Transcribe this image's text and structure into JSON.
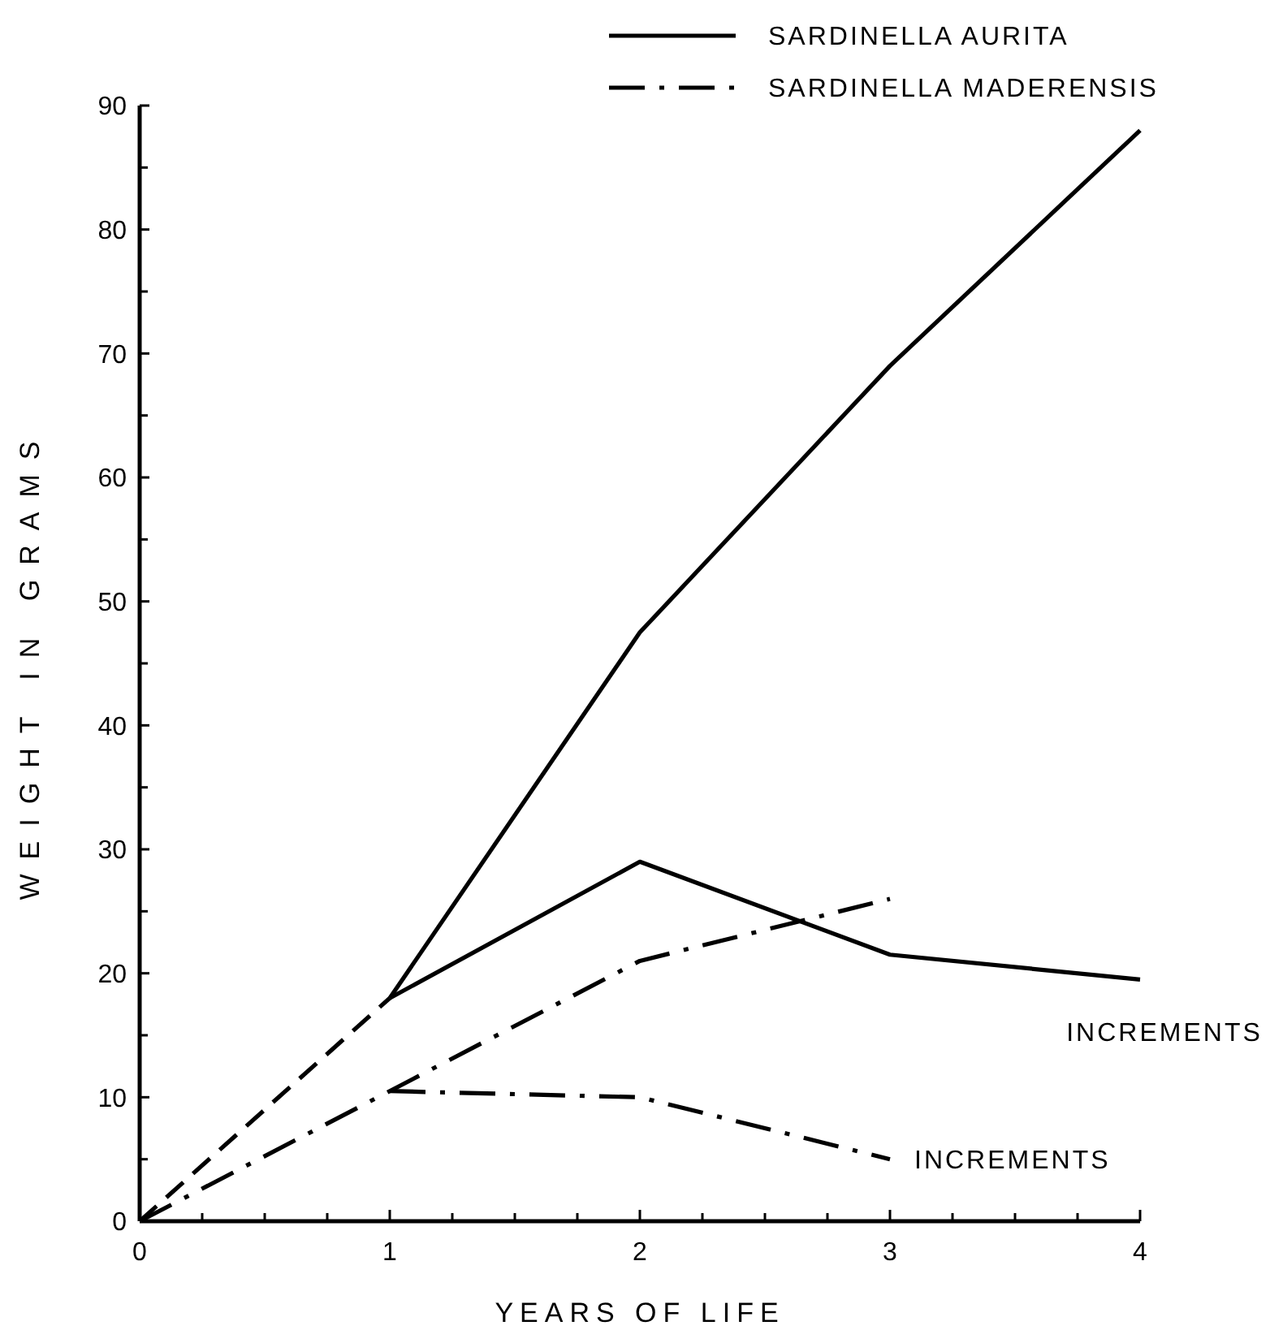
{
  "chart_data": {
    "type": "line",
    "xlabel": "YEARS OF LIFE",
    "ylabel": "WEIGHT IN GRAMS",
    "xlim": [
      0,
      4
    ],
    "ylim": [
      0,
      90
    ],
    "xticks": [
      0,
      {
        "value": 0.25,
        "label": null
      },
      {
        "value": 0.5,
        "label": null
      },
      {
        "value": 0.75,
        "label": null
      },
      1,
      {
        "value": 1.25,
        "label": null
      },
      {
        "value": 1.5,
        "label": null
      },
      {
        "value": 1.75,
        "label": null
      },
      2,
      {
        "value": 2.25,
        "label": null
      },
      {
        "value": 2.5,
        "label": null
      },
      {
        "value": 2.75,
        "label": null
      },
      3,
      {
        "value": 3.25,
        "label": null
      },
      {
        "value": 3.5,
        "label": null
      },
      {
        "value": 3.75,
        "label": null
      },
      4
    ],
    "yticks": [
      0,
      {
        "value": 5,
        "label": null
      },
      10,
      {
        "value": 15,
        "label": null
      },
      20,
      {
        "value": 25,
        "label": null
      },
      30,
      {
        "value": 35,
        "label": null
      },
      40,
      {
        "value": 45,
        "label": null
      },
      50,
      {
        "value": 55,
        "label": null
      },
      60,
      {
        "value": 65,
        "label": null
      },
      70,
      {
        "value": 75,
        "label": null
      },
      80,
      {
        "value": 85,
        "label": null
      },
      90
    ],
    "legend": "top right",
    "grid": false,
    "marker": "none",
    "series": [
      {
        "name": "SARDINELLA AURITA",
        "color": "#000000",
        "line_style": "solid",
        "x": [
          1,
          2,
          3,
          4
        ],
        "values": [
          18,
          47.5,
          69,
          88
        ]
      },
      {
        "color": "#000000",
        "line_style": "dashed",
        "x": [
          0,
          1
        ],
        "values": [
          0,
          18
        ]
      },
      {
        "color": "#000000",
        "line_style": "solid",
        "x": [
          1,
          2,
          3,
          4
        ],
        "values": [
          18,
          29,
          21.5,
          19.5
        ]
      },
      {
        "name": "SARDINELLA MADERENSIS",
        "color": "#000000",
        "line_style": "dashdot",
        "x": [
          0,
          1,
          2,
          3
        ],
        "values": [
          0,
          10.5,
          21,
          26
        ]
      },
      {
        "color": "#000000",
        "line_style": "dashdot",
        "x": [
          1,
          2,
          3
        ],
        "values": [
          10.5,
          10,
          5
        ]
      }
    ],
    "annotations": [
      {
        "text": "INCREMENTS",
        "x": 4,
        "y": 19.5
      },
      {
        "text": "INCREMENTS",
        "x": 3,
        "y": 5
      }
    ]
  }
}
